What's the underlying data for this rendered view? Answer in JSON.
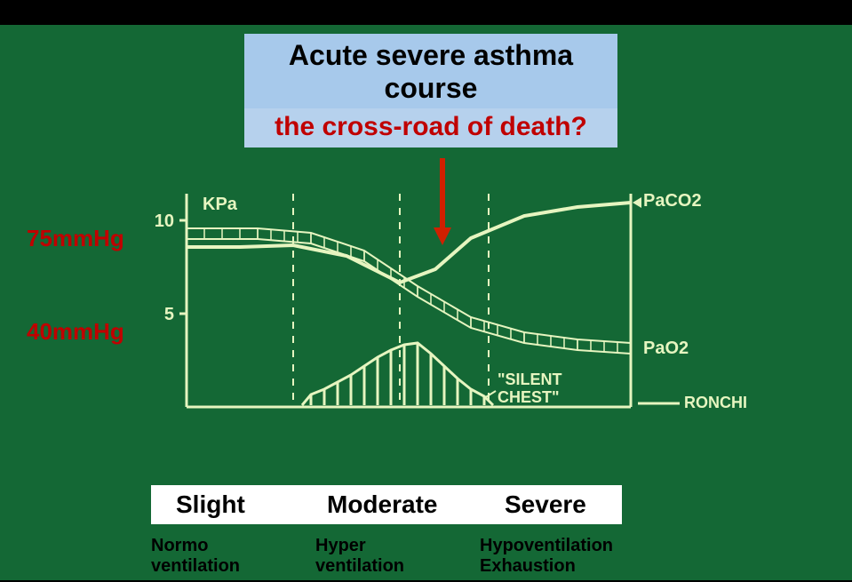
{
  "title": {
    "line1": "Acute severe asthma",
    "line2": "course",
    "line3": "the cross-road of death?"
  },
  "leftAxis": {
    "upper": "75mmHg",
    "lower": "40mmHg"
  },
  "chart": {
    "bg": "#146835",
    "line_color": "#e6f5c0",
    "text_color": "#e6f5c0",
    "axis": {
      "y_label": "KPa",
      "y_ticks": [
        {
          "v": 10,
          "y": 40
        },
        {
          "v": 5,
          "y": 145
        }
      ],
      "x_min": 60,
      "x_max": 560,
      "y_min": 10,
      "y_max": 250
    },
    "vlines": [
      180,
      300,
      400
    ],
    "curves": {
      "paco2": {
        "label": "PaCO2",
        "points": [
          [
            60,
            70
          ],
          [
            120,
            70
          ],
          [
            180,
            68
          ],
          [
            240,
            80
          ],
          [
            300,
            110
          ],
          [
            340,
            95
          ],
          [
            380,
            60
          ],
          [
            440,
            35
          ],
          [
            500,
            25
          ],
          [
            560,
            20
          ]
        ]
      },
      "pao2": {
        "label": "PaO2",
        "points": [
          [
            60,
            55
          ],
          [
            140,
            55
          ],
          [
            200,
            60
          ],
          [
            260,
            80
          ],
          [
            320,
            120
          ],
          [
            380,
            155
          ],
          [
            440,
            172
          ],
          [
            500,
            180
          ],
          [
            560,
            184
          ]
        ],
        "band": 6
      }
    },
    "silent_chest": {
      "label": "\"SILENT\nCHEST\"",
      "bars_x": [
        200,
        215,
        230,
        245,
        260,
        275,
        290,
        305,
        320,
        335,
        350,
        365,
        380,
        395
      ],
      "bars_h": [
        12,
        18,
        26,
        34,
        44,
        54,
        62,
        68,
        70,
        58,
        44,
        30,
        18,
        10
      ],
      "base_y": 248
    },
    "ronchi_label": "RONCHI",
    "ronchi_line_y": 246
  },
  "severity": {
    "a": "Slight",
    "b": "Moderate",
    "c": "Severe"
  },
  "vent": {
    "c1a": "Normo",
    "c1b": "ventilation",
    "c2a": "Hyper",
    "c2b": "ventilation",
    "c3a": "Hypoventilation",
    "c3b": "Exhaustion"
  },
  "colors": {
    "title_bg": "#a7c9eb",
    "title_bg2": "#b6d1ed",
    "title_text": "#000000",
    "subtitle_text": "#c00000",
    "arrow": "#d02000",
    "severity_bg": "#ffffff"
  }
}
